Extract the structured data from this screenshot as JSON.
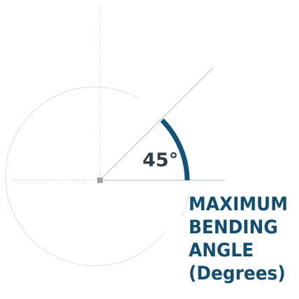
{
  "diagram": {
    "angle_value": "45°",
    "caption_lines": [
      "MAXIMUM",
      "BENDING",
      "ANGLE",
      "(Degrees)"
    ],
    "colors": {
      "arc_accent": "#0f5478",
      "guide_lines": "#c8ccd0",
      "dotted_axes": "#c4c8cc",
      "vertex_marker": "#9aa3aa",
      "angle_label": "#2f3d47",
      "caption_text": "#124e72"
    }
  }
}
